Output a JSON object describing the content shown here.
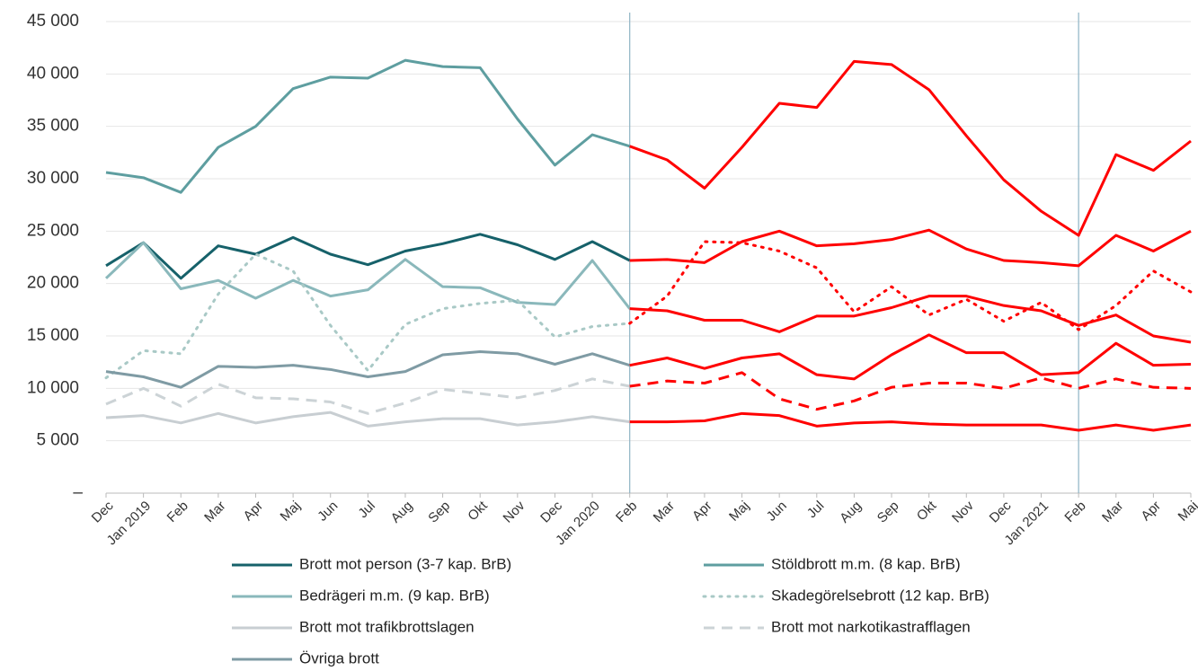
{
  "chart_data": {
    "type": "line",
    "categories": [
      "Dec",
      "Jan 2019",
      "Feb",
      "Mar",
      "Apr",
      "Maj",
      "Jun",
      "Jul",
      "Aug",
      "Sep",
      "Okt",
      "Nov",
      "Dec",
      "Jan 2020",
      "Feb",
      "Mar",
      "Apr",
      "Maj",
      "Jun",
      "Jul",
      "Aug",
      "Sep",
      "Okt",
      "Nov",
      "Dec",
      "Jan 2021",
      "Feb",
      "Mar",
      "Apr",
      "Maj"
    ],
    "ylim": [
      0,
      45000
    ],
    "yticks": [
      {
        "value": 0,
        "label": "–"
      },
      {
        "value": 5000,
        "label": "5 000"
      },
      {
        "value": 10000,
        "label": "10 000"
      },
      {
        "value": 15000,
        "label": "15 000"
      },
      {
        "value": 20000,
        "label": "20 000"
      },
      {
        "value": 25000,
        "label": "25 000"
      },
      {
        "value": 30000,
        "label": "30 000"
      },
      {
        "value": 35000,
        "label": "35 000"
      },
      {
        "value": 40000,
        "label": "40 000"
      },
      {
        "value": 45000,
        "label": "45 000"
      }
    ],
    "grid": true,
    "forecast_color": "#ff0000",
    "forecast_start": 14,
    "vlines": [
      14,
      26
    ],
    "series": [
      {
        "name": "Brott mot person (3-7 kap. BrB)",
        "color": "#16616a",
        "dash": "solid",
        "values": [
          21700,
          23900,
          20500,
          23600,
          22800,
          24400,
          22800,
          21800,
          23100,
          23800,
          24700,
          23700,
          22300,
          24000,
          22200,
          22300,
          22000,
          24000,
          25000,
          23600,
          23800,
          24200,
          25100,
          23300,
          22200,
          22000,
          21700,
          24600,
          23100,
          25000
        ]
      },
      {
        "name": "Stöldbrott m.m. (8 kap. BrB)",
        "color": "#5e9ea0",
        "dash": "solid",
        "values": [
          30600,
          30100,
          28700,
          33000,
          35000,
          38600,
          39700,
          39600,
          41300,
          40700,
          40600,
          35700,
          31300,
          34200,
          33100,
          31800,
          29100,
          33000,
          37200,
          36800,
          41200,
          40900,
          38500,
          34100,
          29900,
          26900,
          24600,
          32300,
          30800,
          33600
        ]
      },
      {
        "name": "Bedrägeri m.m. (9 kap. BrB)",
        "color": "#8ab8bb",
        "dash": "solid",
        "values": [
          20500,
          23900,
          19500,
          20300,
          18600,
          20300,
          18800,
          19400,
          22300,
          19700,
          19600,
          18200,
          18000,
          22200,
          17600,
          17400,
          16500,
          16500,
          15400,
          16900,
          16900,
          17700,
          18800,
          18800,
          17900,
          17400,
          16000,
          17000,
          15000,
          14400
        ]
      },
      {
        "name": "Skadegörelsebrott (12 kap. BrB)",
        "color": "#a9c9c6",
        "dash": "dotted",
        "values": [
          11000,
          13600,
          13300,
          19000,
          22800,
          21200,
          16000,
          11700,
          16100,
          17600,
          18100,
          18400,
          14900,
          15900,
          16200,
          18800,
          24000,
          23900,
          23100,
          21500,
          17300,
          19700,
          17000,
          18500,
          16400,
          18200,
          15600,
          17900,
          21200,
          19200
        ]
      },
      {
        "name": "Brott mot trafikbrottslagen",
        "color": "#c8ced2",
        "dash": "solid",
        "values": [
          7200,
          7400,
          6700,
          7600,
          6700,
          7300,
          7700,
          6400,
          6800,
          7100,
          7100,
          6500,
          6800,
          7300,
          6800,
          6800,
          6900,
          7600,
          7400,
          6400,
          6700,
          6800,
          6600,
          6500,
          6500,
          6500,
          6000,
          6500,
          6000,
          6500
        ]
      },
      {
        "name": "Brott mot narkotikastrafflagen",
        "color": "#ccd3d6",
        "dash": "dashed",
        "values": [
          8500,
          10000,
          8300,
          10400,
          9100,
          9000,
          8700,
          7600,
          8600,
          9900,
          9500,
          9100,
          9800,
          10900,
          10200,
          10700,
          10500,
          11500,
          9000,
          8000,
          8800,
          10100,
          10500,
          10500,
          10000,
          11000,
          10000,
          10900,
          10100,
          10000
        ]
      },
      {
        "name": "Övriga brott",
        "color": "#7f9ba4",
        "dash": "solid",
        "values": [
          11600,
          11100,
          10100,
          12100,
          12000,
          12200,
          11800,
          11100,
          11600,
          13200,
          13500,
          13300,
          12300,
          13300,
          12200,
          12900,
          11900,
          12900,
          13300,
          11300,
          10900,
          13200,
          15100,
          13400,
          13400,
          11300,
          11500,
          14300,
          12200,
          12300
        ]
      }
    ]
  }
}
